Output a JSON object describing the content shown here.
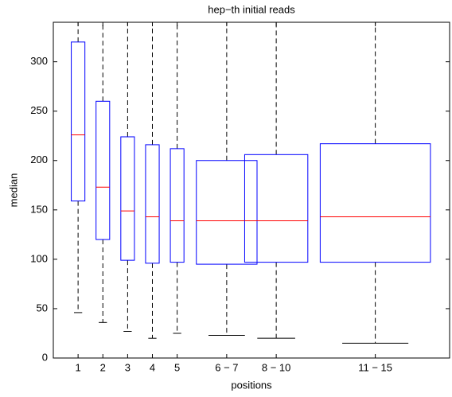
{
  "chart_data": {
    "type": "boxplot",
    "title": "hep−th initial reads",
    "xlabel": "positions",
    "ylabel": "median",
    "categories": [
      "1",
      "2",
      "3",
      "4",
      "5",
      "6 − 7",
      "8 − 10",
      "11 − 15"
    ],
    "x": [
      1,
      2,
      3,
      4,
      5,
      7,
      9,
      13
    ],
    "widths": [
      0.55,
      0.55,
      0.55,
      0.55,
      0.55,
      2.45,
      2.55,
      4.45
    ],
    "boxes": [
      {
        "whisker_low": 46,
        "q1": 159,
        "median": 226,
        "q3": 320,
        "whisker_high": 340
      },
      {
        "whisker_low": 36,
        "q1": 120,
        "median": 173,
        "q3": 260,
        "whisker_high": 340
      },
      {
        "whisker_low": 27,
        "q1": 99,
        "median": 149,
        "q3": 224,
        "whisker_high": 340
      },
      {
        "whisker_low": 20,
        "q1": 96,
        "median": 143,
        "q3": 216,
        "whisker_high": 340
      },
      {
        "whisker_low": 25,
        "q1": 97,
        "median": 139,
        "q3": 212,
        "whisker_high": 340
      },
      {
        "whisker_low": 23,
        "q1": 95,
        "median": 139,
        "q3": 200,
        "whisker_high": 340
      },
      {
        "whisker_low": 20,
        "q1": 97,
        "median": 139,
        "q3": 206,
        "whisker_high": 340
      },
      {
        "whisker_low": 15,
        "q1": 97,
        "median": 143,
        "q3": 217,
        "whisker_high": 340
      }
    ],
    "box_color": "#0000ff",
    "median_color": "#ff0000",
    "whisker_color": "#000000",
    "xlim": [
      0,
      16
    ],
    "ylim": [
      0,
      340
    ],
    "yticks": [
      0,
      50,
      100,
      150,
      200,
      250,
      300
    ]
  }
}
